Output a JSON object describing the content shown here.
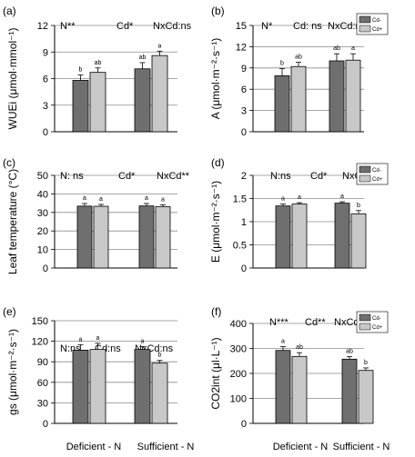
{
  "colors": {
    "cd_minus": "#6f6f6f",
    "cd_plus": "#c8c8c8",
    "grid": "#8c8c8c",
    "axis": "#000000"
  },
  "xcategories": [
    "Deficient - N",
    "Sufficient - N"
  ],
  "chart_data": [
    {
      "type": "bar",
      "panel": "(a)",
      "ylabel": "WUEi (μmol·mmol⁻¹)",
      "yticks": [
        "0",
        "3",
        "6",
        "9",
        "12"
      ],
      "ylim": [
        0,
        12
      ],
      "stats": [
        "N**",
        "Cd*",
        "NxCd:ns"
      ],
      "categories": [
        "Deficient - N",
        "Sufficient - N"
      ],
      "series": [
        {
          "name": "Cd-",
          "values": [
            5.8,
            7.1
          ],
          "errors": [
            0.6,
            0.7
          ],
          "letters": [
            "b",
            "ab"
          ]
        },
        {
          "name": "Cd+",
          "values": [
            6.7,
            8.6
          ],
          "errors": [
            0.5,
            0.5
          ],
          "letters": [
            "ab",
            "a"
          ]
        }
      ],
      "legend": false
    },
    {
      "type": "bar",
      "panel": "(b)",
      "ylabel": "A (μmol·m⁻²·s⁻¹)",
      "yticks": [
        "0",
        "3",
        "6",
        "9",
        "12",
        "15"
      ],
      "ylim": [
        0,
        15
      ],
      "stats": [
        "N*",
        "Cd: ns",
        "NxCd:ns"
      ],
      "categories": [
        "Deficient - N",
        "Sufficient - N"
      ],
      "series": [
        {
          "name": "Cd-",
          "values": [
            7.9,
            10.0
          ],
          "errors": [
            1.0,
            1.0
          ],
          "letters": [
            "b",
            "ab"
          ]
        },
        {
          "name": "Cd+",
          "values": [
            9.2,
            10.1
          ],
          "errors": [
            0.6,
            0.9
          ],
          "letters": [
            "ab",
            "a"
          ]
        }
      ],
      "legend": true,
      "legend_position": "top-right"
    },
    {
      "type": "bar",
      "panel": "(c)",
      "ylabel": "Leaf temperature (°C)",
      "yticks": [
        "0",
        "10",
        "20",
        "30",
        "40",
        "50"
      ],
      "ylim": [
        0,
        50
      ],
      "stats": [
        "N: ns",
        "Cd*",
        "NxCd**"
      ],
      "categories": [
        "Deficient - N",
        "Sufficient - N"
      ],
      "series": [
        {
          "name": "Cd-",
          "values": [
            33.4,
            33.5
          ],
          "errors": [
            1.4,
            1.3
          ],
          "letters": [
            "a",
            "a"
          ]
        },
        {
          "name": "Cd+",
          "values": [
            33.3,
            33.1
          ],
          "errors": [
            1.0,
            1.0
          ],
          "letters": [
            "a",
            "a"
          ]
        }
      ],
      "legend": false
    },
    {
      "type": "bar",
      "panel": "(d)",
      "ylabel": "E (μmol·m⁻²·s⁻¹)",
      "yticks": [
        "0",
        "0.5",
        "1",
        "1.5",
        "2"
      ],
      "ylim": [
        0,
        2
      ],
      "stats": [
        "N:ns",
        "Cd*",
        "NxCd**"
      ],
      "categories": [
        "Deficient - N",
        "Sufficient - N"
      ],
      "series": [
        {
          "name": "Cd-",
          "values": [
            1.34,
            1.4
          ],
          "errors": [
            0.04,
            0.03
          ],
          "letters": [
            "a",
            "a"
          ]
        },
        {
          "name": "Cd+",
          "values": [
            1.38,
            1.17
          ],
          "errors": [
            0.03,
            0.07
          ],
          "letters": [
            "a",
            "b"
          ]
        }
      ],
      "legend": true,
      "legend_position": "top-right"
    },
    {
      "type": "bar",
      "panel": "(e)",
      "ylabel": "gs (μmol·m⁻²·s⁻¹)",
      "yticks": [
        "0",
        "30",
        "60",
        "90",
        "120",
        "150"
      ],
      "ylim": [
        0,
        150
      ],
      "stats": [
        "N:ns",
        "Cd:ns",
        "NxCd:ns"
      ],
      "categories": [
        "Deficient - N",
        "Sufficient - N"
      ],
      "series": [
        {
          "name": "Cd-",
          "values": [
            107,
            108
          ],
          "errors": [
            8,
            4
          ],
          "letters": [
            "a",
            "a"
          ]
        },
        {
          "name": "Cd+",
          "values": [
            108,
            88
          ],
          "errors": [
            9,
            4
          ],
          "letters": [
            "a",
            "b"
          ]
        }
      ],
      "legend": false
    },
    {
      "type": "bar",
      "panel": "(f)",
      "ylabel": "CO2int (μl·L⁻¹)",
      "yticks": [
        "0",
        "100",
        "200",
        "300",
        "400"
      ],
      "ylim": [
        0,
        400
      ],
      "stats": [
        "N***",
        "Cd**",
        "NxCd:ns"
      ],
      "categories": [
        "Deficient - N",
        "Sufficient - N"
      ],
      "series": [
        {
          "name": "Cd-",
          "values": [
            292,
            257
          ],
          "errors": [
            15,
            10
          ],
          "letters": [
            "a",
            "ab"
          ]
        },
        {
          "name": "Cd+",
          "values": [
            268,
            212
          ],
          "errors": [
            15,
            10
          ],
          "letters": [
            "ab",
            "b"
          ]
        }
      ],
      "legend": true,
      "legend_position": "top-right"
    }
  ]
}
